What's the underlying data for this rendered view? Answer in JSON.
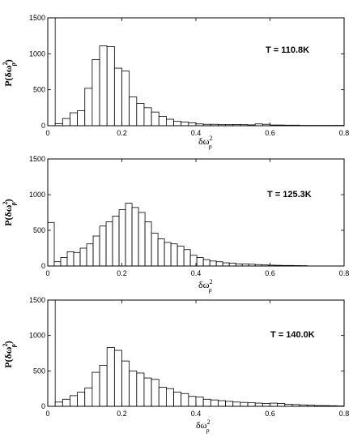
{
  "chart_data": [
    {
      "type": "bar",
      "annotation": "T = 110.8K",
      "xlabel": {
        "base": "δω",
        "sup": "2",
        "sub": "ρ"
      },
      "ylabel": {
        "prefix": "P(",
        "base": "δω",
        "sup": "2",
        "sub": "ρ",
        "suffix": ")"
      },
      "xlim": [
        0,
        0.8
      ],
      "ylim": [
        0,
        1500
      ],
      "xticks": [
        0,
        0.2,
        0.4,
        0.6,
        0.8
      ],
      "xtick_labels": [
        "0",
        "0.2",
        "0.4",
        "0.6",
        "0.8"
      ],
      "yticks": [
        0,
        500,
        1000,
        1500
      ],
      "ytick_labels": [
        "0",
        "500",
        "1000",
        "1500"
      ],
      "bin_width": 0.02,
      "bin_start": 0,
      "values": [
        1500,
        30,
        100,
        180,
        210,
        520,
        920,
        1110,
        1100,
        800,
        760,
        400,
        310,
        250,
        190,
        130,
        90,
        60,
        50,
        40,
        25,
        20,
        20,
        15,
        15,
        18,
        15,
        12,
        25,
        20,
        10,
        10,
        8,
        8,
        5,
        5,
        5,
        5,
        5,
        5
      ]
    },
    {
      "type": "bar",
      "annotation": "T = 125.3K",
      "xlabel": {
        "base": "δω",
        "sup": "2",
        "sub": "ρ"
      },
      "ylabel": {
        "prefix": "P(",
        "base": "δω",
        "sup": "2",
        "sub": "ρ",
        "suffix": ")"
      },
      "xlim": [
        0,
        0.8
      ],
      "ylim": [
        0,
        1500
      ],
      "xticks": [
        0,
        0.2,
        0.4,
        0.6,
        0.8
      ],
      "xtick_labels": [
        "0",
        "0.2",
        "0.4",
        "0.6",
        "0.8"
      ],
      "yticks": [
        0,
        500,
        1000,
        1500
      ],
      "ytick_labels": [
        "0",
        "500",
        "1000",
        "1500"
      ],
      "bin_width": 0.0175,
      "bin_start": 0,
      "values": [
        610,
        60,
        120,
        200,
        190,
        250,
        310,
        420,
        560,
        620,
        700,
        790,
        880,
        820,
        750,
        620,
        460,
        380,
        330,
        310,
        280,
        230,
        150,
        120,
        90,
        70,
        60,
        45,
        40,
        30,
        30,
        25,
        20,
        15,
        12,
        10,
        8,
        8,
        6,
        5
      ]
    },
    {
      "type": "bar",
      "annotation": "T = 140.0K",
      "xlabel": {
        "base": "δω",
        "sup": "2",
        "sub": "ρ"
      },
      "ylabel": {
        "prefix": "P(",
        "base": "δω",
        "sup": "2",
        "sub": "ρ",
        "suffix": ")"
      },
      "xlim": [
        0,
        0.8
      ],
      "ylim": [
        0,
        1500
      ],
      "xticks": [
        0,
        0.2,
        0.4,
        0.6,
        0.8
      ],
      "xtick_labels": [
        "0",
        "0.2",
        "0.4",
        "0.6",
        "0.8"
      ],
      "yticks": [
        0,
        500,
        1000,
        1500
      ],
      "ytick_labels": [
        "0",
        "500",
        "1000",
        "1500"
      ],
      "bin_width": 0.02,
      "bin_start": 0,
      "values": [
        1500,
        60,
        100,
        150,
        200,
        260,
        480,
        580,
        830,
        790,
        640,
        500,
        470,
        400,
        380,
        270,
        250,
        200,
        180,
        140,
        130,
        100,
        90,
        80,
        70,
        60,
        55,
        50,
        45,
        40,
        45,
        40,
        30,
        25,
        20,
        15,
        10,
        10,
        8,
        5
      ]
    }
  ]
}
